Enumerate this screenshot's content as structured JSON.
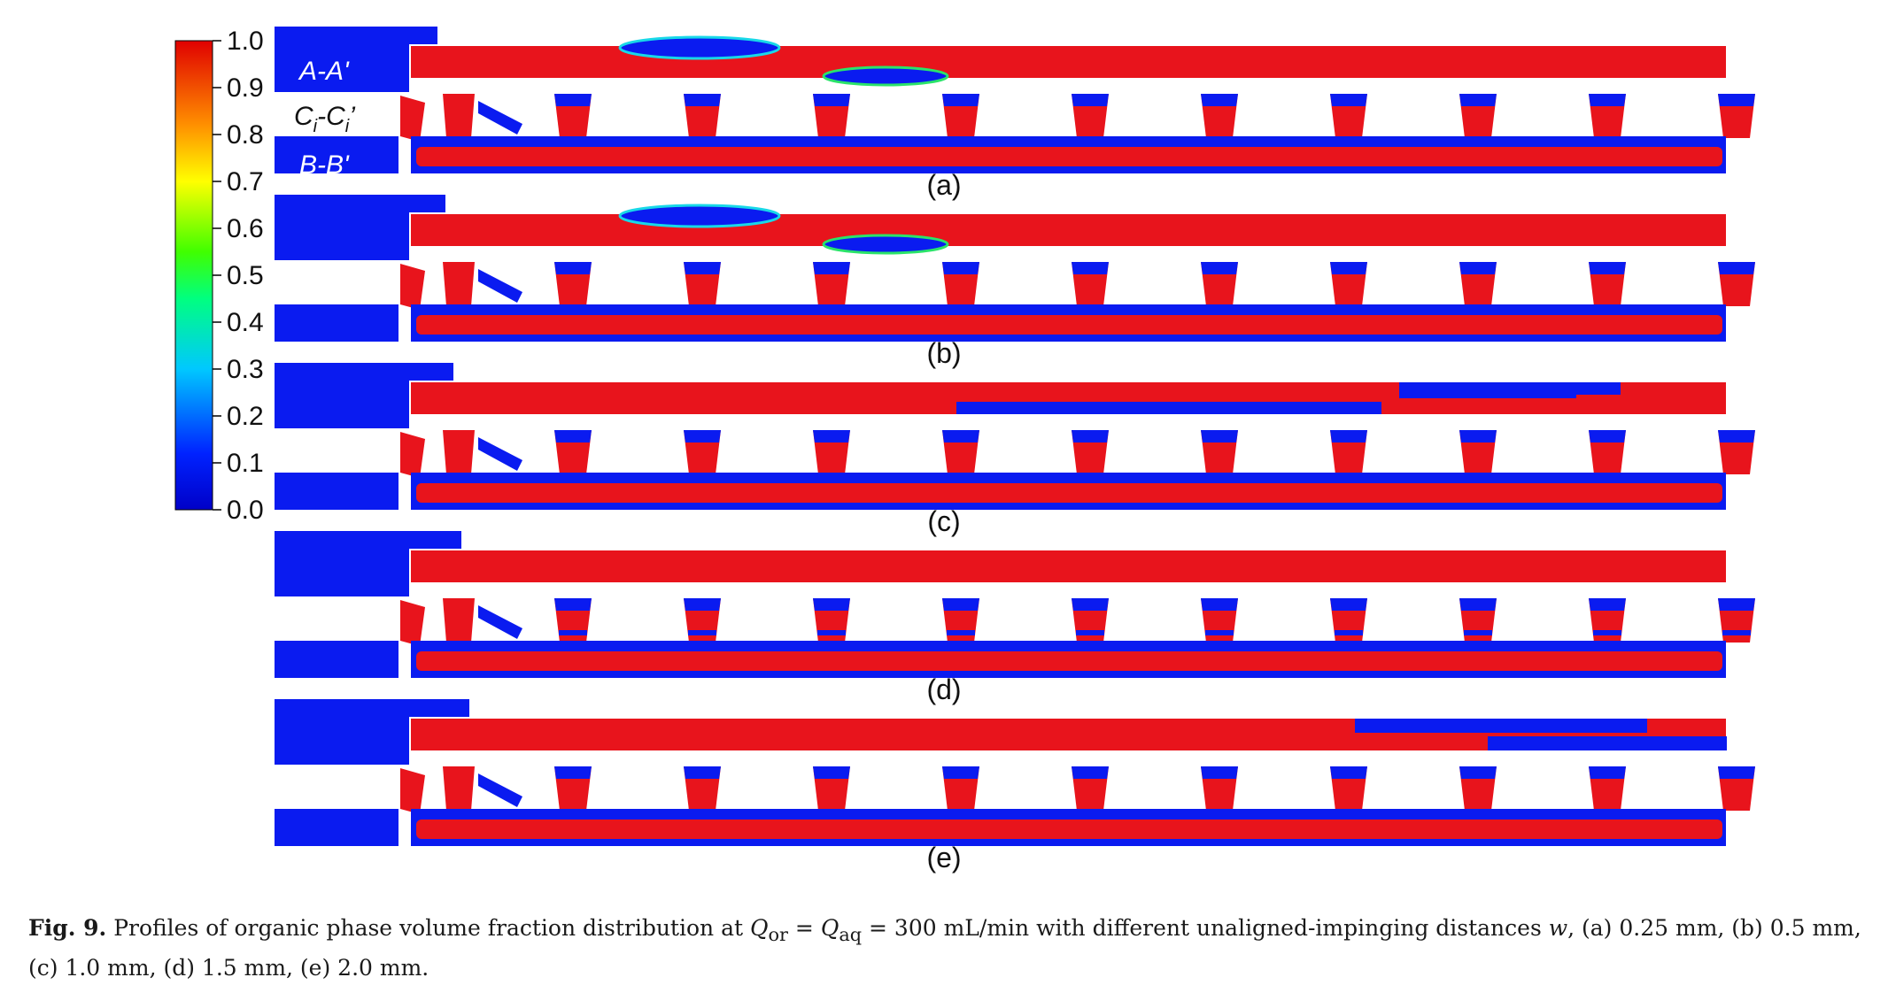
{
  "colorbar": {
    "ticks": [
      "1.0",
      "0.9",
      "0.8",
      "0.7",
      "0.6",
      "0.5",
      "0.4",
      "0.3",
      "0.2",
      "0.1",
      "0.0"
    ]
  },
  "section_labels": {
    "aa": "A-A'",
    "cc": "Ci-Ci'",
    "bb": "B-B'"
  },
  "panels": [
    {
      "label": "(a)",
      "w_mm": 0.25
    },
    {
      "label": "(b)",
      "w_mm": 0.5
    },
    {
      "label": "(c)",
      "w_mm": 1.0
    },
    {
      "label": "(d)",
      "w_mm": 1.5
    },
    {
      "label": "(e)",
      "w_mm": 2.0
    }
  ],
  "caption": {
    "fig_label": "Fig. 9.",
    "text_1": "Profiles of organic phase volume fraction distribution at ",
    "q_or": "Q",
    "q_or_sub": "or",
    "eq": " = ",
    "q_aq": "Q",
    "q_aq_sub": "aq",
    "text_2": " = 300 mL/min with different unaligned-impinging distances ",
    "w": "w",
    "text_3": ", (a) 0.25 mm, (b) 0.5 mm, (c) 1.0 mm, (d) 1.5 mm, (e) 2.0 mm."
  },
  "colors": {
    "organic": "#e8141c",
    "aqueous": "#0a1bf0",
    "interface_green": "#2be36a",
    "interface_cyan": "#18d8e8"
  }
}
